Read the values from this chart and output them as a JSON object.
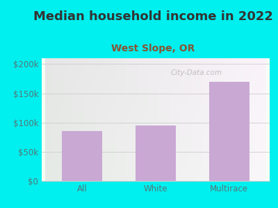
{
  "title": "Median household income in 2022",
  "subtitle": "West Slope, OR",
  "categories": [
    "All",
    "White",
    "Multirace"
  ],
  "values": [
    85000,
    95000,
    170000
  ],
  "bar_color": "#c9a8d4",
  "background_color": "#00efef",
  "plot_bg_gradient_left": "#c8e8c0",
  "plot_bg_gradient_right": "#f0f8f0",
  "title_color": "#333333",
  "subtitle_color": "#885533",
  "tick_color": "#557777",
  "grid_color": "#cccccc",
  "ylim": [
    0,
    210000
  ],
  "yticks": [
    0,
    50000,
    100000,
    150000,
    200000
  ],
  "ytick_labels": [
    "$0",
    "$50k",
    "$100k",
    "$150k",
    "$200k"
  ],
  "watermark": "City-Data.com",
  "title_fontsize": 13,
  "subtitle_fontsize": 10,
  "tick_fontsize": 8.5,
  "bar_width": 0.55
}
